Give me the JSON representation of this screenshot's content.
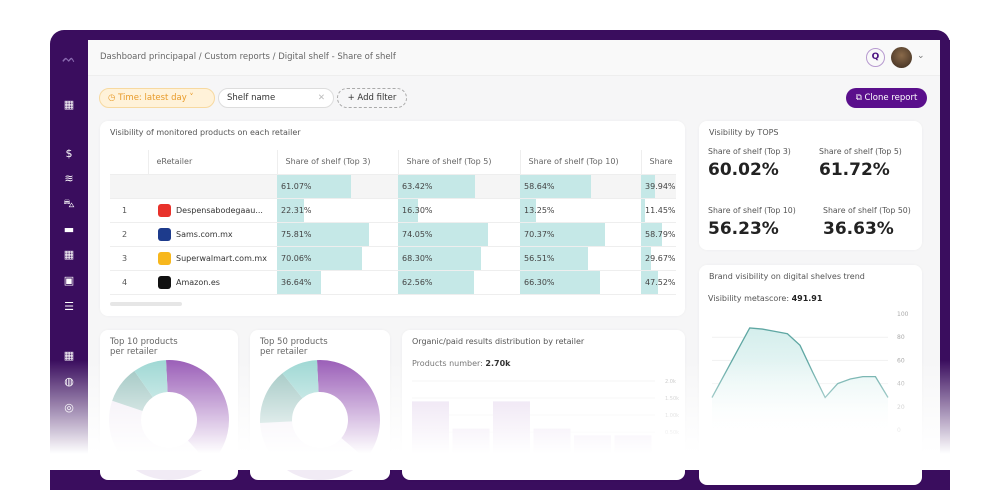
{
  "breadcrumb": "Dashboard principapal / Custom reports / Digital shelf - Share of shelf",
  "header": {
    "search_icon": "search-icon",
    "avatar": "user-avatar"
  },
  "filters": {
    "time": "Time: latest day",
    "shelf_value": "Shelf name",
    "add_filter": "+ Add filter"
  },
  "clone_label": "Clone report",
  "colors": {
    "brand": "#3a0d5e",
    "button": "#5a0f8c",
    "bar": "#c5e8e7",
    "trend": "#5fa7a3",
    "time_pill": "#e89b2a"
  },
  "sidebar": {
    "icons": [
      "dashboard-icon",
      "dollar-icon",
      "ranking-icon",
      "cart-icon",
      "store-icon",
      "grid-icon",
      "image-search-icon",
      "list-icon",
      "report-edit-icon",
      "compass-icon",
      "signal-icon"
    ]
  },
  "table": {
    "title": "Visibility of monitored products on each retailer",
    "columns": [
      "eRetailer",
      "Share of shelf (Top 3)",
      "Share of shelf (Top 5)",
      "Share of shelf (Top 10)",
      "Share"
    ],
    "summary": [
      "61.07%",
      "63.42%",
      "58.64%",
      "39.94%"
    ],
    "rows": [
      {
        "n": "1",
        "name": "Despensabodegaau...",
        "vals": [
          "22.31%",
          "16.30%",
          "13.25%",
          "11.45%"
        ],
        "color": "#e8322b"
      },
      {
        "n": "2",
        "name": "Sams.com.mx",
        "vals": [
          "75.81%",
          "74.05%",
          "70.37%",
          "58.79%"
        ],
        "color": "#1d3b8c"
      },
      {
        "n": "3",
        "name": "Superwalmart.com.mx",
        "vals": [
          "70.06%",
          "68.30%",
          "56.51%",
          "29.67%"
        ],
        "color": "#f7b71d"
      },
      {
        "n": "4",
        "name": "Amazon.es",
        "vals": [
          "36.64%",
          "62.56%",
          "66.30%",
          "47.52%"
        ],
        "color": "#111"
      }
    ]
  },
  "tops": {
    "title": "Visibility by TOPS",
    "items": [
      {
        "label": "Share of shelf (Top 3)",
        "value": "60.02%"
      },
      {
        "label": "Share of shelf (Top 5)",
        "value": "61.72%"
      },
      {
        "label": "Share of shelf (Top 10)",
        "value": "56.23%"
      },
      {
        "label": "Share of shelf (Top 50)",
        "value": "36.63%"
      }
    ]
  },
  "donut1": {
    "title1": "Top 10 products",
    "title2": "per retailer"
  },
  "donut2": {
    "title1": "Top 50 products",
    "title2": "per retailer"
  },
  "organic": {
    "title": "Organic/paid results distribution by retailer",
    "products_label": "Products number: ",
    "products_value": "2.70k"
  },
  "trend": {
    "title": "Brand visibility on digital shelves trend",
    "metascore_label": "Visibility metascore: ",
    "metascore_value": "491.91"
  },
  "chart_data": [
    {
      "type": "pie",
      "name_ref": "donut1",
      "values": [
        39,
        42,
        10,
        9
      ],
      "colors": [
        "#9b5fb8",
        "#f1ebf5",
        "#9cc4c0",
        "#9fd8d4"
      ]
    },
    {
      "type": "pie",
      "name_ref": "donut2",
      "values": [
        37,
        38,
        15,
        10
      ],
      "colors": [
        "#9b5fb8",
        "#f1ebf5",
        "#9cc4c0",
        "#9fd8d4"
      ]
    },
    {
      "type": "bar",
      "title": "Organic/paid results distribution by retailer",
      "values": [
        1.4,
        0.6,
        1.4,
        0.6,
        0.4,
        0.4
      ],
      "yticks": [
        "0.50k",
        "1.00k",
        "1.50k",
        "2.0k"
      ],
      "ylim": [
        0,
        2.0
      ],
      "grid": true
    },
    {
      "type": "area",
      "title": "Brand visibility on digital shelves trend",
      "values": [
        28,
        48,
        68,
        88,
        87,
        85,
        83,
        73,
        50,
        28,
        40,
        44,
        46,
        46,
        28
      ],
      "yticks": [
        "0",
        "20",
        "40",
        "60",
        "80",
        "100"
      ],
      "ylim": [
        0,
        100
      ],
      "grid": true
    }
  ]
}
